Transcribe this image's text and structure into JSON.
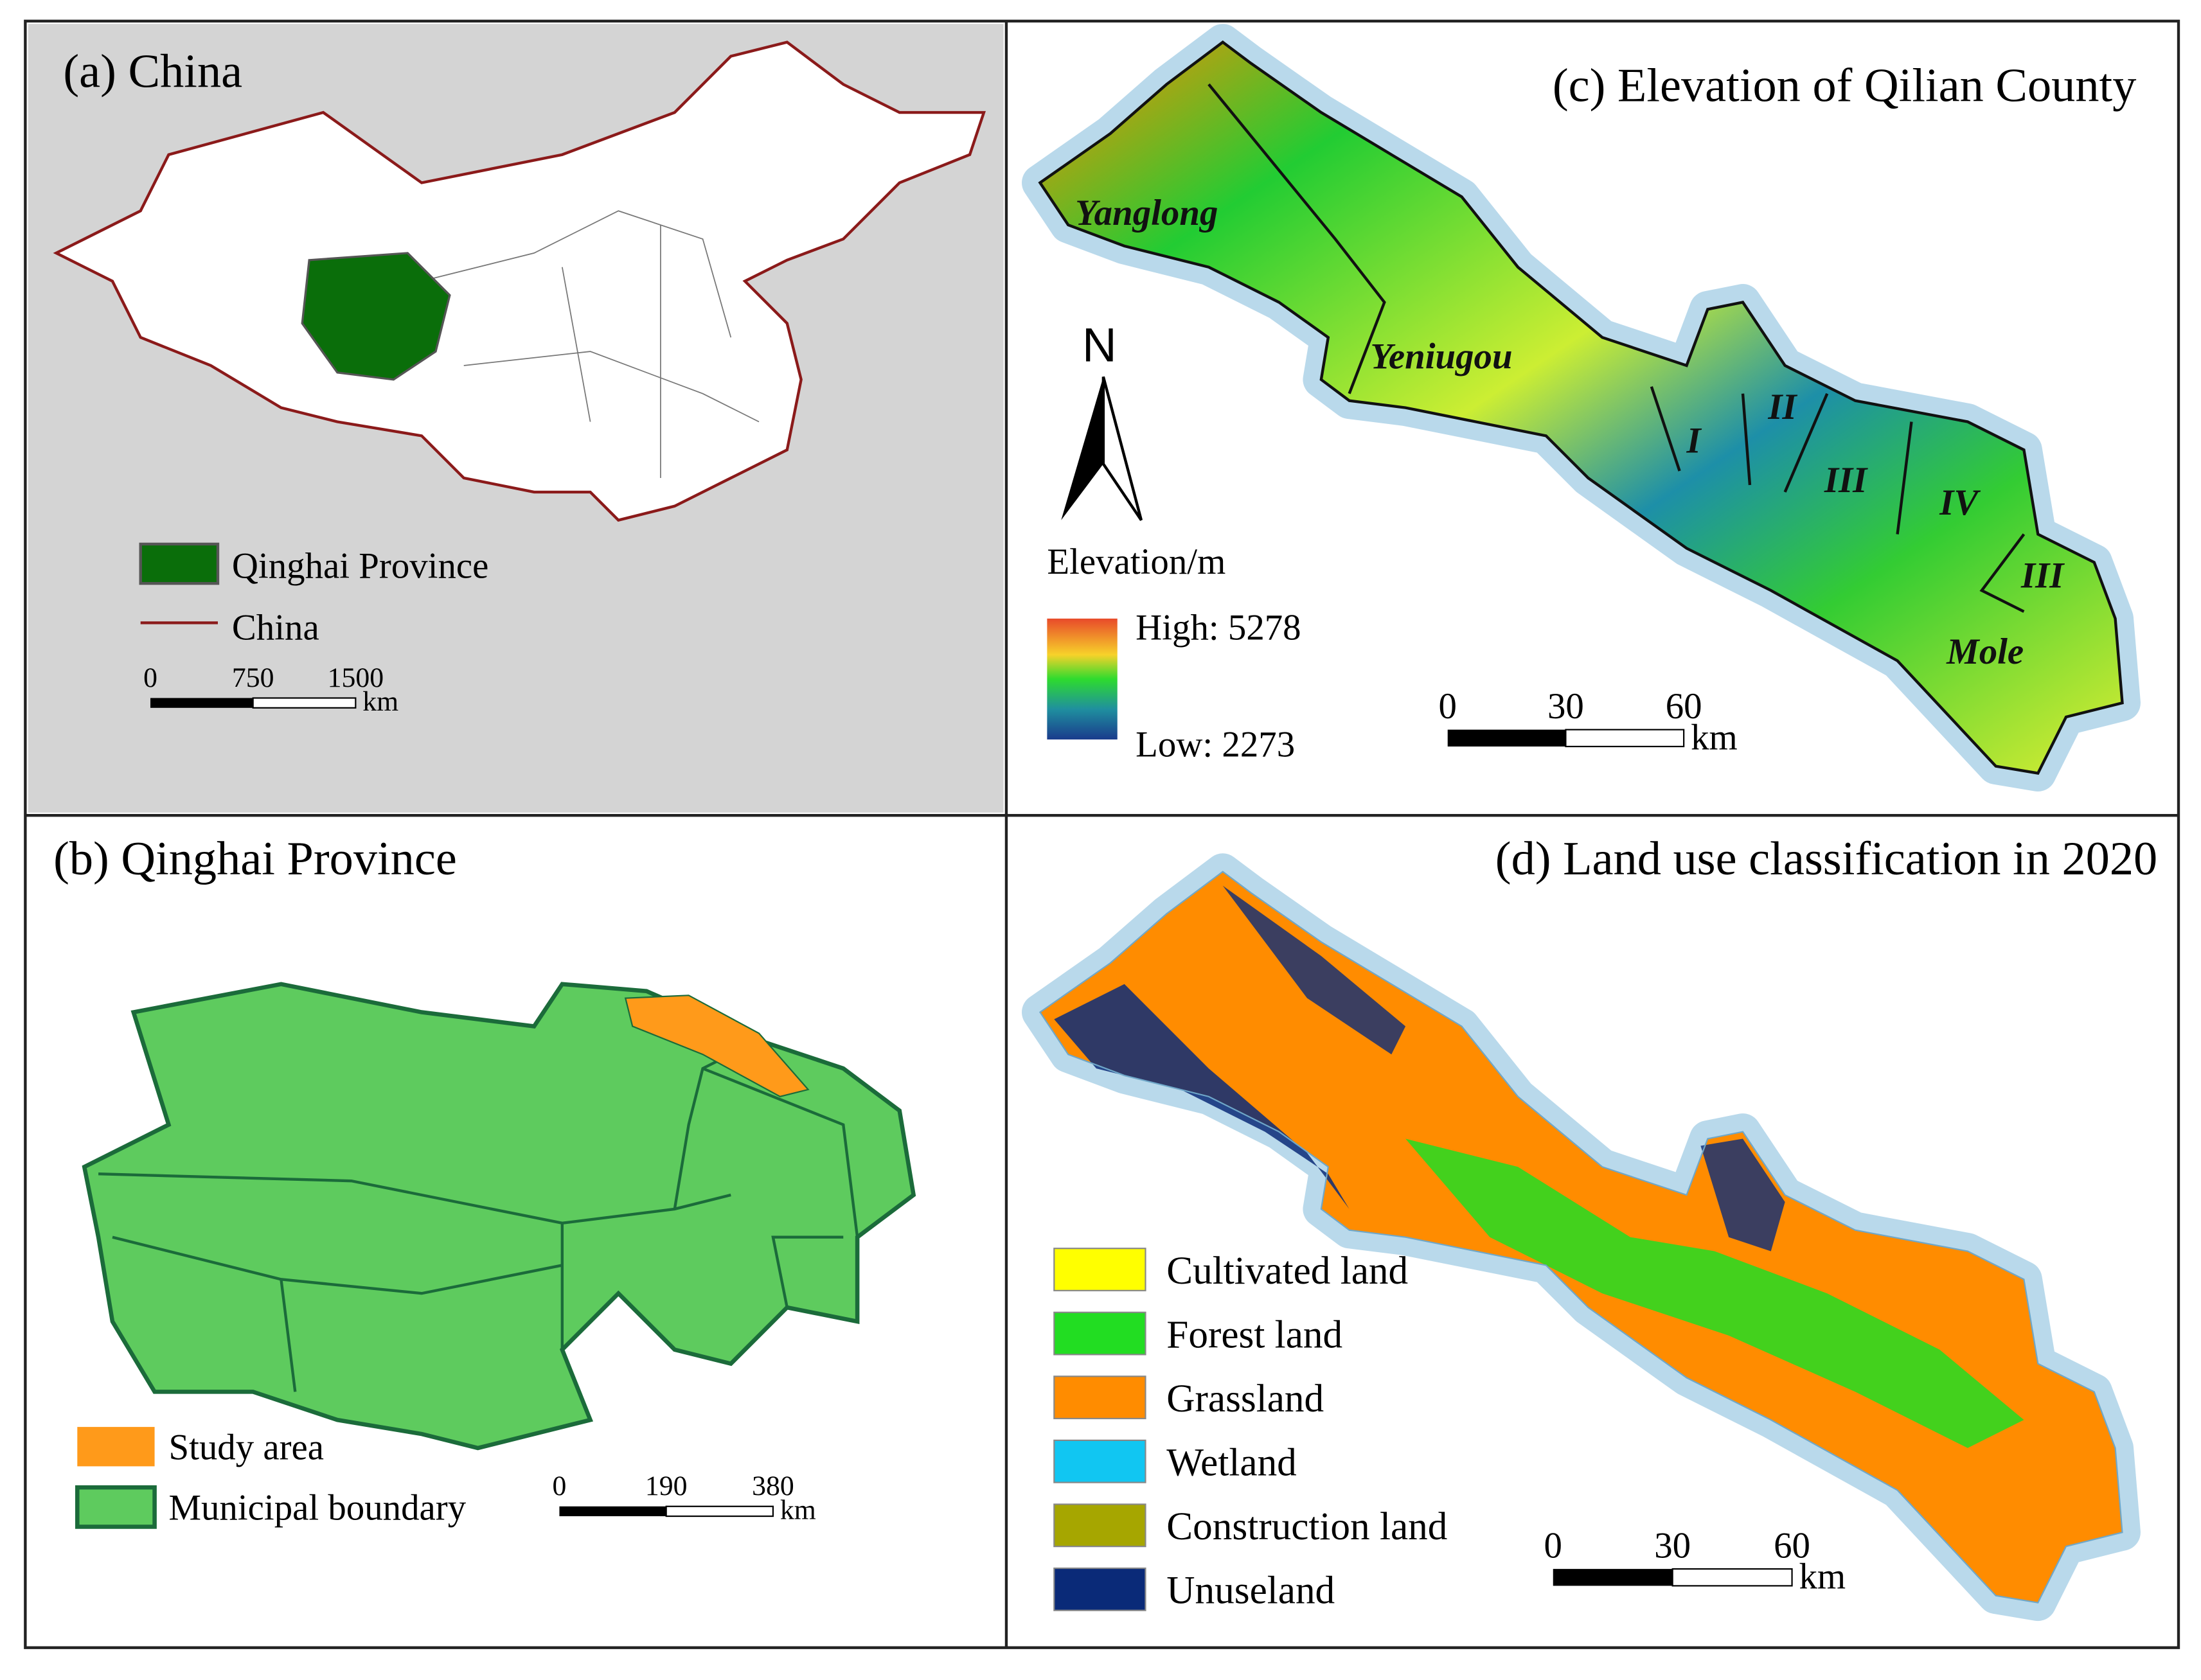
{
  "panels": {
    "a": {
      "title": "(a)  China",
      "legend": [
        "Qinghai Province",
        "China"
      ],
      "scale": {
        "ticks": [
          "0",
          "750",
          "1500"
        ],
        "unit": "km"
      }
    },
    "b": {
      "title": "(b) Qinghai Province",
      "legend": [
        "Study area",
        "Municipal boundary"
      ],
      "scale": {
        "ticks": [
          "0",
          "190",
          "380"
        ],
        "unit": "km"
      }
    },
    "c": {
      "title": "(c) Elevation of Qilian County",
      "places": [
        "Yanglong",
        "Yeniugou",
        "I",
        "II",
        "III",
        "IV",
        "III",
        "Mole"
      ],
      "north": "N",
      "legend_title": "Elevation/m",
      "high": "High: 5278",
      "low": "Low:  2273",
      "scale": {
        "ticks": [
          "0",
          "30",
          "60"
        ],
        "unit": "km"
      }
    },
    "d": {
      "title": "(d) Land use classification in 2020",
      "legend": [
        {
          "label": "Cultivated land",
          "color": "#ffff00"
        },
        {
          "label": "Forest land",
          "color": "#22dd22"
        },
        {
          "label": "Grassland",
          "color": "#ff8c00"
        },
        {
          "label": "Wetland",
          "color": "#11c6f2"
        },
        {
          "label": "Construction land",
          "color": "#a6a600"
        },
        {
          "label": "Unuseland",
          "color": "#0a2a78"
        }
      ],
      "scale": {
        "ticks": [
          "0",
          "30",
          "60"
        ],
        "unit": "km"
      }
    }
  }
}
